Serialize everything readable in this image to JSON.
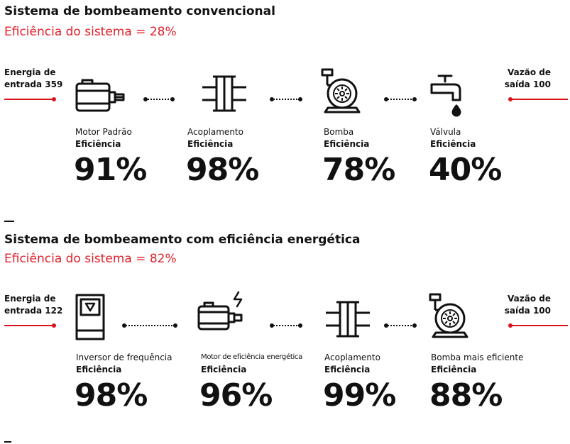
{
  "section1": {
    "title": "Sistema de bombeamento convencional",
    "subtitle": "Eficiência do sistema = 28%",
    "input_label_1": "Energia de",
    "input_label_2": "entrada 359",
    "output_label_1": "Vazão de",
    "output_label_2": "saída 100",
    "components": [
      {
        "name": "Motor Padrão",
        "label": "Eficiência",
        "value": "91%",
        "icon": "motor-icon"
      },
      {
        "name": "Acoplamento",
        "label": "Eficiência",
        "value": "98%",
        "icon": "coupling-icon"
      },
      {
        "name": "Bomba",
        "label": "Eficiência",
        "value": "78%",
        "icon": "pump-icon"
      },
      {
        "name": "Válvula",
        "label": "Eficiência",
        "value": "40%",
        "icon": "valve-icon"
      }
    ]
  },
  "section2": {
    "title": "Sistema de bombeamento com eficiência energética",
    "subtitle": "Eficiência do sistema = 82%",
    "input_label_1": "Energia de",
    "input_label_2": "entrada 122",
    "output_label_1": "Vazão de",
    "output_label_2": "saída 100",
    "components": [
      {
        "name": "Inversor de frequência",
        "label": "Eficiência",
        "value": "98%",
        "icon": "drive-icon"
      },
      {
        "name": "Motor de eficiência energética",
        "label": "Eficiência",
        "value": "96%",
        "icon": "efficient-motor-icon"
      },
      {
        "name": "Acoplamento",
        "label": "Eficiência",
        "value": "99%",
        "icon": "coupling-icon"
      },
      {
        "name": "Bomba mais eficiente",
        "label": "Eficiência",
        "value": "88%",
        "icon": "pump-icon"
      }
    ]
  },
  "colors": {
    "accent": "#e1202a",
    "text": "#111111"
  }
}
